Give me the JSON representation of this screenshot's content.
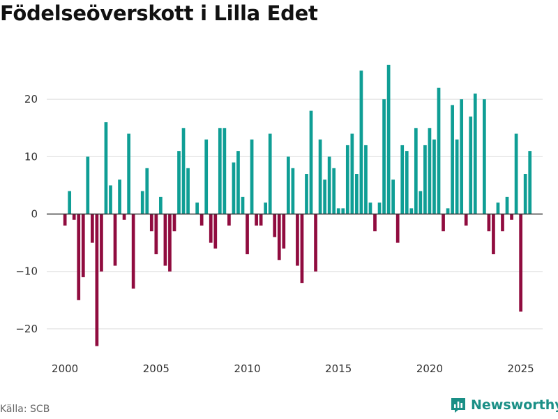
{
  "page": {
    "title": "Födelseöverskott i Lilla Edet"
  },
  "footer": {
    "source": "Källa: SCB",
    "brand": "Newsworthy"
  },
  "colors": {
    "positive": "#0f9e95",
    "negative": "#900c3f",
    "grid": "#dddddd",
    "zero": "#333333"
  },
  "chart_data": {
    "type": "bar",
    "title": "Födelseöverskott i Lilla Edet",
    "xlabel": "",
    "ylabel": "",
    "x_range": [
      1999.0,
      2026.2
    ],
    "ylim": [
      -25,
      30
    ],
    "yticks": [
      -20,
      -10,
      0,
      10,
      20
    ],
    "xticks": [
      2000,
      2005,
      2010,
      2015,
      2020,
      2025
    ],
    "grid": true,
    "start": 2000.0,
    "step": 0.25,
    "values": [
      -2,
      4,
      -1,
      -15,
      -11,
      10,
      -5,
      -23,
      -10,
      16,
      5,
      -9,
      6,
      -1,
      14,
      -13,
      0,
      4,
      8,
      -3,
      -7,
      3,
      -9,
      -10,
      -3,
      11,
      15,
      8,
      0,
      2,
      -2,
      13,
      -5,
      -6,
      15,
      15,
      -2,
      9,
      11,
      3,
      -7,
      13,
      -2,
      -2,
      2,
      14,
      -4,
      -8,
      -6,
      10,
      8,
      -9,
      -12,
      7,
      18,
      -10,
      13,
      6,
      10,
      8,
      1,
      1,
      12,
      14,
      7,
      25,
      12,
      2,
      -3,
      2,
      20,
      26,
      6,
      -5,
      12,
      11,
      1,
      15,
      4,
      12,
      15,
      13,
      22,
      -3,
      1,
      19,
      13,
      20,
      -2,
      17,
      21,
      0,
      20,
      -3,
      -7,
      2,
      -3,
      3,
      -1,
      14,
      -17,
      7,
      11
    ]
  }
}
